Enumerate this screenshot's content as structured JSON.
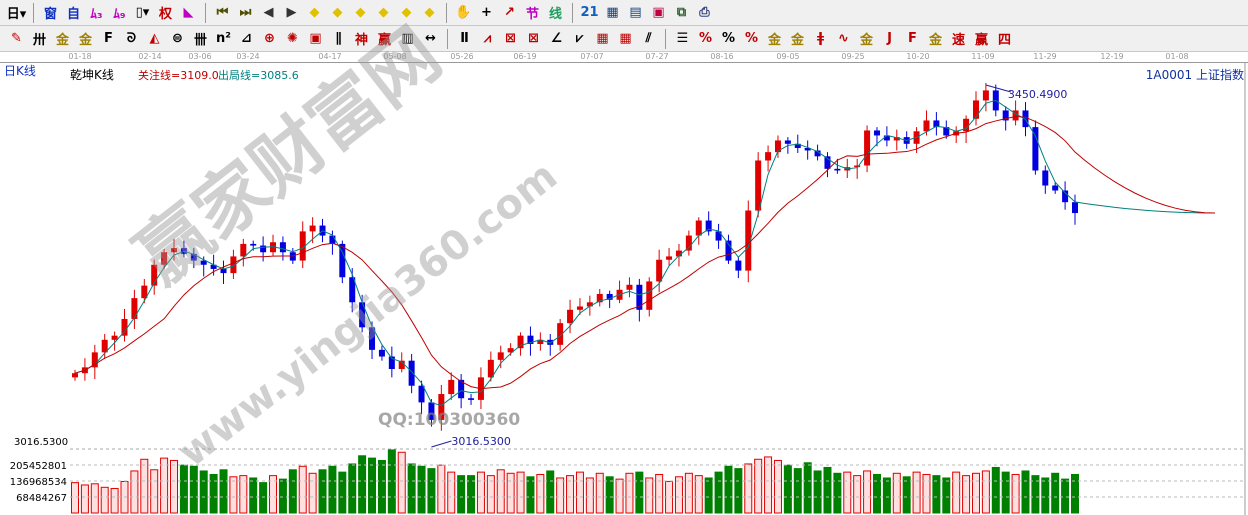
{
  "toolbar1": [
    {
      "name": "period-day-button",
      "glyph": "日▾",
      "color": "#000"
    },
    {
      "sep": true
    },
    {
      "name": "window-icon",
      "glyph": "窗",
      "color": "#1030c0"
    },
    {
      "name": "self-select-icon",
      "glyph": "自",
      "color": "#1030c0"
    },
    {
      "name": "chart-3-icon",
      "glyph": "ﾑ₃",
      "color": "#c000c0"
    },
    {
      "name": "chart-9-icon",
      "glyph": "ﾑ₉",
      "color": "#c000c0"
    },
    {
      "name": "candle-type-button",
      "glyph": "▯▾",
      "color": "#000"
    },
    {
      "name": "right-restore-icon",
      "glyph": "权",
      "color": "#c00000"
    },
    {
      "name": "indicator-icon",
      "glyph": "◣",
      "color": "#c000c0"
    },
    {
      "sep": true
    },
    {
      "name": "first-icon",
      "glyph": "⏮",
      "color": "#505000"
    },
    {
      "name": "last-icon",
      "glyph": "⏭",
      "color": "#505000"
    },
    {
      "name": "left-arrow-icon",
      "glyph": "◀",
      "color": "#333"
    },
    {
      "name": "right-arrow-icon",
      "glyph": "▶",
      "color": "#333"
    },
    {
      "name": "move-left-icon",
      "glyph": "◆",
      "color": "#e0c000"
    },
    {
      "name": "move-right-icon",
      "glyph": "◆",
      "color": "#e0c000"
    },
    {
      "name": "zoom-in-h-icon",
      "glyph": "◆",
      "color": "#e0c000"
    },
    {
      "name": "zoom-out-h-icon",
      "glyph": "◆",
      "color": "#e0c000"
    },
    {
      "name": "zoom-in-v-icon",
      "glyph": "◆",
      "color": "#e0c000"
    },
    {
      "name": "zoom-out-v-icon",
      "glyph": "◆",
      "color": "#e0c000"
    },
    {
      "sep": true
    },
    {
      "name": "hand-icon",
      "glyph": "✋",
      "color": "#000"
    },
    {
      "name": "crosshair-icon",
      "glyph": "+",
      "color": "#000"
    },
    {
      "name": "line-tool-icon",
      "glyph": "↗",
      "color": "#c00000"
    },
    {
      "name": "section-icon",
      "glyph": "节",
      "color": "#c000c0"
    },
    {
      "name": "line-icon",
      "glyph": "线",
      "color": "#20a060"
    },
    {
      "sep": true
    },
    {
      "name": "calendar-icon",
      "glyph": "21",
      "color": "#1060c0"
    },
    {
      "name": "calculator-icon",
      "glyph": "▦",
      "color": "#104080"
    },
    {
      "name": "report-icon",
      "glyph": "▤",
      "color": "#104080"
    },
    {
      "name": "save-icon",
      "glyph": "▣",
      "color": "#c00040"
    },
    {
      "name": "network-icon",
      "glyph": "⧉",
      "color": "#306030"
    },
    {
      "name": "print-icon",
      "glyph": "⎙",
      "color": "#304080"
    }
  ],
  "toolbar2": [
    {
      "name": "pen-icon",
      "glyph": "✎",
      "color": "#c00000"
    },
    {
      "name": "parallel-lines-icon",
      "glyph": "卅",
      "color": "#000"
    },
    {
      "name": "gold-ratio-icon",
      "glyph": "金",
      "color": "#a08000"
    },
    {
      "name": "gold-split-icon",
      "glyph": "金",
      "color": "#a08000"
    },
    {
      "name": "fib-icon",
      "glyph": "F",
      "color": "#000"
    },
    {
      "name": "spiral-icon",
      "glyph": "ᘐ",
      "color": "#000"
    },
    {
      "name": "fan-icon",
      "glyph": "◭",
      "color": "#c00000"
    },
    {
      "name": "circle-icon",
      "glyph": "⊜",
      "color": "#000"
    },
    {
      "name": "cycle-lines-icon",
      "glyph": "卌",
      "color": "#000"
    },
    {
      "name": "n-square-icon",
      "glyph": "n²",
      "color": "#000"
    },
    {
      "name": "triangle-icon",
      "glyph": "⊿",
      "color": "#000"
    },
    {
      "name": "target-icon",
      "glyph": "⊕",
      "color": "#c00000"
    },
    {
      "name": "star-icon",
      "glyph": "✺",
      "color": "#c00000"
    },
    {
      "name": "box-icon",
      "glyph": "▣",
      "color": "#c00000"
    },
    {
      "name": "lines-icon",
      "glyph": "∥",
      "color": "#000"
    },
    {
      "name": "shen-icon",
      "glyph": "神",
      "color": "#c00000"
    },
    {
      "name": "ying-icon",
      "glyph": "赢",
      "color": "#c00000"
    },
    {
      "name": "grid-icon",
      "glyph": "▥",
      "color": "#000"
    },
    {
      "name": "width-icon",
      "glyph": "↔",
      "color": "#000"
    },
    {
      "sep": true
    },
    {
      "name": "ruler-icon",
      "glyph": "Ⅱ",
      "color": "#000"
    },
    {
      "name": "speed-lines-icon",
      "glyph": "⩘",
      "color": "#c00000"
    },
    {
      "name": "gann-box-icon",
      "glyph": "⊠",
      "color": "#c00000"
    },
    {
      "name": "gann-fan-icon",
      "glyph": "⊠",
      "color": "#c00000"
    },
    {
      "name": "angle-icon",
      "glyph": "∠",
      "color": "#000"
    },
    {
      "name": "wave-icon",
      "glyph": "⩗",
      "color": "#000"
    },
    {
      "name": "grid-red-icon",
      "glyph": "▦",
      "color": "#c00000"
    },
    {
      "name": "grid-red2-icon",
      "glyph": "▦",
      "color": "#c00000"
    },
    {
      "name": "channel-icon",
      "glyph": "⫽",
      "color": "#000"
    },
    {
      "sep": true
    },
    {
      "name": "list-icon",
      "glyph": "☰",
      "color": "#000"
    },
    {
      "name": "percent-line-icon",
      "glyph": "%",
      "color": "#c00000"
    },
    {
      "name": "percent-icon",
      "glyph": "%",
      "color": "#000"
    },
    {
      "name": "percent-bar-icon",
      "glyph": "%",
      "color": "#c00000"
    },
    {
      "name": "gold-circle-icon",
      "glyph": "金",
      "color": "#a08000"
    },
    {
      "name": "gold-lines-icon",
      "glyph": "金",
      "color": "#a08000"
    },
    {
      "name": "marker-icon",
      "glyph": "ǂ",
      "color": "#c00000"
    },
    {
      "name": "sine-icon",
      "glyph": "∿",
      "color": "#c00000"
    },
    {
      "name": "gold-bar-icon",
      "glyph": "金",
      "color": "#a08000"
    },
    {
      "name": "j-angle-icon",
      "glyph": "J",
      "color": "#c00000"
    },
    {
      "name": "f-angle-icon",
      "glyph": "F",
      "color": "#c00000"
    },
    {
      "name": "gold-angle-icon",
      "glyph": "金",
      "color": "#a08000"
    },
    {
      "name": "speed-angle-icon",
      "glyph": "速",
      "color": "#c00000"
    },
    {
      "name": "ying-angle-icon",
      "glyph": "赢",
      "color": "#c00000"
    },
    {
      "name": "four-angle-icon",
      "glyph": "四",
      "color": "#c00000"
    }
  ],
  "info": {
    "period": "日K线",
    "indicator": "乾坤K线",
    "focus_line": "关注线=3109.0",
    "exit_line": "出局线=3085.6",
    "symbol": "1A0001  上证指数"
  },
  "watermark": {
    "brand": "赢家财富网",
    "url": "www.yingjia360.com",
    "qq": "QQ:100300360"
  },
  "colors": {
    "up": "#e00000",
    "down": "#0000e0",
    "ma_short": "#008080",
    "ma_long": "#c00000",
    "vol_up": "#e00000",
    "vol_down": "#008000"
  },
  "chart_data": {
    "type": "candlestick",
    "x_ticks": [
      "01-18",
      "02-14",
      "03-06",
      "03-24",
      "04-17",
      "05-08",
      "05-26",
      "06-19",
      "07-07",
      "07-27",
      "08-16",
      "09-05",
      "09-25",
      "10-20",
      "11-09",
      "11-29",
      "12-19",
      "01-08"
    ],
    "ylim": [
      3016.53,
      3450.49
    ],
    "high_label": "3450.4900",
    "low_label": "3016.5300",
    "closes": [
      3105,
      3112,
      3130,
      3145,
      3150,
      3170,
      3195,
      3210,
      3235,
      3250,
      3255,
      3248,
      3240,
      3235,
      3230,
      3225,
      3245,
      3260,
      3258,
      3250,
      3262,
      3250,
      3240,
      3275,
      3282,
      3270,
      3260,
      3220,
      3190,
      3160,
      3133,
      3125,
      3110,
      3120,
      3090,
      3070,
      3049,
      3080,
      3097,
      3075,
      3073,
      3100,
      3121,
      3130,
      3135,
      3150,
      3140,
      3145,
      3139,
      3165,
      3181,
      3185,
      3190,
      3200,
      3193,
      3205,
      3211,
      3181,
      3215,
      3241,
      3245,
      3252,
      3270,
      3288,
      3275,
      3264,
      3240,
      3228,
      3300,
      3360,
      3370,
      3384,
      3380,
      3375,
      3372,
      3365,
      3350,
      3348,
      3352,
      3354,
      3396,
      3390,
      3384,
      3388,
      3380,
      3395,
      3408,
      3400,
      3390,
      3395,
      3410,
      3432,
      3444,
      3420,
      3408,
      3420,
      3400,
      3348,
      3330,
      3324,
      3310,
      3297
    ],
    "volume_labels": [
      "205452801",
      "136968534",
      "68484267"
    ],
    "volume_max": 274000000,
    "volumes": [
      130000000,
      120000000,
      125000000,
      110000000,
      105000000,
      135000000,
      180000000,
      230000000,
      185000000,
      235000000,
      225000000,
      205000000,
      200000000,
      180000000,
      165000000,
      185000000,
      155000000,
      160000000,
      150000000,
      130000000,
      160000000,
      145000000,
      185000000,
      200000000,
      170000000,
      185000000,
      200000000,
      175000000,
      210000000,
      245000000,
      235000000,
      225000000,
      270000000,
      260000000,
      210000000,
      200000000,
      190000000,
      205000000,
      175000000,
      160000000,
      160000000,
      175000000,
      160000000,
      185000000,
      170000000,
      175000000,
      155000000,
      165000000,
      180000000,
      150000000,
      160000000,
      175000000,
      150000000,
      170000000,
      155000000,
      145000000,
      170000000,
      175000000,
      150000000,
      165000000,
      135000000,
      155000000,
      170000000,
      160000000,
      150000000,
      175000000,
      200000000,
      190000000,
      210000000,
      230000000,
      240000000,
      225000000,
      205000000,
      190000000,
      215000000,
      180000000,
      195000000,
      170000000,
      175000000,
      160000000,
      180000000,
      165000000,
      150000000,
      170000000,
      155000000,
      175000000,
      165000000,
      160000000,
      150000000,
      175000000,
      160000000,
      170000000,
      180000000,
      195000000,
      175000000,
      165000000,
      180000000,
      160000000,
      150000000,
      170000000,
      145000000,
      165000000
    ]
  }
}
